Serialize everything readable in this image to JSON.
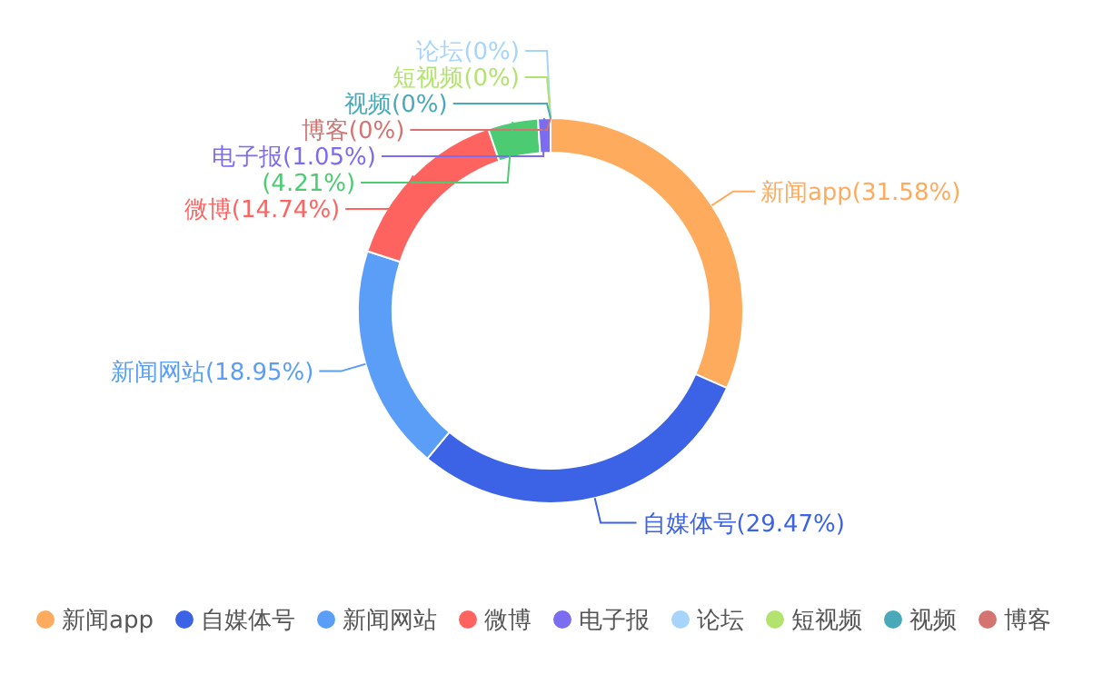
{
  "chart_data": {
    "type": "donut",
    "categories": [
      "新闻app",
      "自媒体号",
      "新闻网站",
      "微博",
      null,
      "电子报",
      "论坛",
      "短视频",
      "视频",
      "博客"
    ],
    "values": [
      31.58,
      29.47,
      18.95,
      14.74,
      4.21,
      1.05,
      0,
      0,
      0,
      0
    ],
    "colors": [
      "#ffab5e",
      "#3c63e6",
      "#5b9ef8",
      "#ff6360",
      "#4ccb73",
      "#7b6cf0",
      "#a6d4fb",
      "#b3e36f",
      "#4aa9b8",
      "#d4736f"
    ],
    "value_labels": [
      "新闻app(31.58%)",
      "自媒体号(29.47%)",
      "新闻网站(18.95%)",
      "微博(14.74%)",
      "(4.21%)",
      "电子报(1.05%)",
      "论坛(0%)",
      "短视频(0%)",
      "视频(0%)",
      "博客(0%)"
    ],
    "legend": "bottom"
  }
}
